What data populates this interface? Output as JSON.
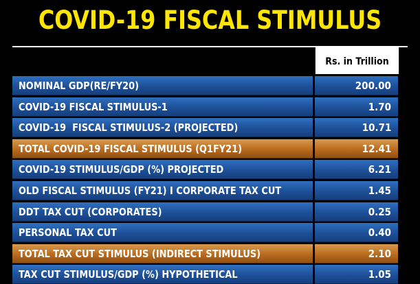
{
  "title": "COVID-19 FISCAL STIMULUS",
  "unit_header": "Rs. in Trillion",
  "colors": {
    "title": "#ffe600",
    "background": "#000000",
    "row_blue": "#1d4f96",
    "row_orange": "#b76a1e"
  },
  "rows": [
    {
      "label": "NOMINAL GDP(RE/FY20)",
      "value": "200.00",
      "highlight": false
    },
    {
      "label": "COVID-19 FISCAL STIMULUS-1",
      "value": "1.70",
      "highlight": false
    },
    {
      "label": "COVID-19  FISCAL STIMULUS-2 (PROJECTED)",
      "value": "10.71",
      "highlight": false
    },
    {
      "label": "TOTAL COVID-19 FISCAL STIMULUS (Q1FY21)",
      "value": "12.41",
      "highlight": true
    },
    {
      "label": "COVID-19 STIMULUS/GDP (%) PROJECTED",
      "value": "6.21",
      "highlight": false
    },
    {
      "label": "OLD FISCAL STIMULUS (FY21) I CORPORATE TAX CUT",
      "value": "1.45",
      "highlight": false
    },
    {
      "label": "DDT TAX CUT (CORPORATES)",
      "value": "0.25",
      "highlight": false
    },
    {
      "label": "PERSONAL TAX CUT",
      "value": "0.40",
      "highlight": false
    },
    {
      "label": "TOTAL TAX CUT STIMULUS (INDIRECT STIMULUS)",
      "value": "2.10",
      "highlight": true
    },
    {
      "label": "TAX CUT STIMULUS/GDP (%) HYPOTHETICAL",
      "value": "1.05",
      "highlight": false
    }
  ]
}
